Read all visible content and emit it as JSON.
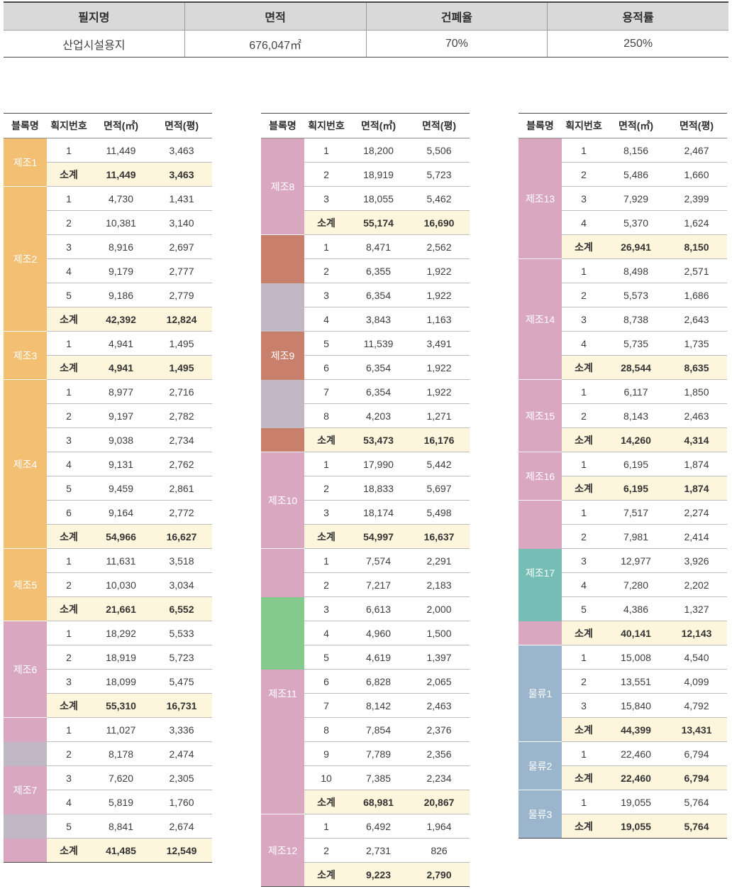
{
  "summary": {
    "headers": [
      "필지명",
      "면적",
      "건폐율",
      "용적률"
    ],
    "values": [
      "산업시설용지",
      "676,047㎡",
      "70%",
      "250%"
    ]
  },
  "table_header": {
    "block": "블록명",
    "parcel": "획지번호",
    "area_m2": "면적(㎡)",
    "area_py": "면적(평)"
  },
  "colors": {
    "orange": "#f2bf73",
    "pink": "#d9a8c0",
    "brown": "#c8806c",
    "gray": "#c0b8c4",
    "green": "#86c98d",
    "teal": "#76bdb5",
    "blue": "#9bb5cc",
    "subtotal_bg": "#fdf5dc"
  },
  "tables": [
    {
      "blocks": [
        {
          "name": "제조1",
          "rows": [
            [
              "1",
              "11,449",
              "3,463"
            ],
            [
              "소계",
              "11,449",
              "3,463"
            ]
          ],
          "stripes": [
            [
              "orange",
              2
            ]
          ]
        },
        {
          "name": "제조2",
          "rows": [
            [
              "1",
              "4,730",
              "1,431"
            ],
            [
              "2",
              "10,381",
              "3,140"
            ],
            [
              "3",
              "8,916",
              "2,697"
            ],
            [
              "4",
              "9,179",
              "2,777"
            ],
            [
              "5",
              "9,186",
              "2,779"
            ],
            [
              "소계",
              "42,392",
              "12,824"
            ]
          ],
          "stripes": [
            [
              "orange",
              6
            ]
          ]
        },
        {
          "name": "제조3",
          "rows": [
            [
              "1",
              "4,941",
              "1,495"
            ],
            [
              "소계",
              "4,941",
              "1,495"
            ]
          ],
          "stripes": [
            [
              "orange",
              2
            ]
          ]
        },
        {
          "name": "제조4",
          "rows": [
            [
              "1",
              "8,977",
              "2,716"
            ],
            [
              "2",
              "9,197",
              "2,782"
            ],
            [
              "3",
              "9,038",
              "2,734"
            ],
            [
              "4",
              "9,131",
              "2,762"
            ],
            [
              "5",
              "9,459",
              "2,861"
            ],
            [
              "6",
              "9,164",
              "2,772"
            ],
            [
              "소계",
              "54,966",
              "16,627"
            ]
          ],
          "stripes": [
            [
              "orange",
              7
            ]
          ]
        },
        {
          "name": "제조5",
          "rows": [
            [
              "1",
              "11,631",
              "3,518"
            ],
            [
              "2",
              "10,030",
              "3,034"
            ],
            [
              "소계",
              "21,661",
              "6,552"
            ]
          ],
          "stripes": [
            [
              "orange",
              3
            ]
          ]
        },
        {
          "name": "제조6",
          "rows": [
            [
              "1",
              "18,292",
              "5,533"
            ],
            [
              "2",
              "18,919",
              "5,723"
            ],
            [
              "3",
              "18,099",
              "5,475"
            ],
            [
              "소계",
              "55,310",
              "16,731"
            ]
          ],
          "stripes": [
            [
              "pink",
              4
            ]
          ]
        },
        {
          "name": "제조7",
          "rows": [
            [
              "1",
              "11,027",
              "3,336"
            ],
            [
              "2",
              "8,178",
              "2,474"
            ],
            [
              "3",
              "7,620",
              "2,305"
            ],
            [
              "4",
              "5,819",
              "1,760"
            ],
            [
              "5",
              "8,841",
              "2,674"
            ],
            [
              "소계",
              "41,485",
              "12,549"
            ]
          ],
          "stripes": [
            [
              "pink",
              1
            ],
            [
              "gray",
              1
            ],
            [
              "pink",
              2
            ],
            [
              "gray",
              1
            ],
            [
              "pink",
              1
            ]
          ],
          "label_offset": 2
        }
      ]
    },
    {
      "blocks": [
        {
          "name": "제조8",
          "rows": [
            [
              "1",
              "18,200",
              "5,506"
            ],
            [
              "2",
              "18,919",
              "5,723"
            ],
            [
              "3",
              "18,055",
              "5,462"
            ],
            [
              "소계",
              "55,174",
              "16,690"
            ]
          ],
          "stripes": [
            [
              "pink",
              4
            ]
          ]
        },
        {
          "name": "제조9",
          "rows": [
            [
              "1",
              "8,471",
              "2,562"
            ],
            [
              "2",
              "6,355",
              "1,922"
            ],
            [
              "3",
              "6,354",
              "1,922"
            ],
            [
              "4",
              "3,843",
              "1,163"
            ],
            [
              "5",
              "11,539",
              "3,491"
            ],
            [
              "6",
              "6,354",
              "1,922"
            ],
            [
              "7",
              "6,354",
              "1,922"
            ],
            [
              "8",
              "4,203",
              "1,271"
            ],
            [
              "소계",
              "53,473",
              "16,176"
            ]
          ],
          "stripes": [
            [
              "brown",
              2
            ],
            [
              "gray",
              2
            ],
            [
              "brown",
              2
            ],
            [
              "gray",
              2
            ],
            [
              "brown",
              1
            ]
          ],
          "label_offset": 4
        },
        {
          "name": "제조10",
          "rows": [
            [
              "1",
              "17,990",
              "5,442"
            ],
            [
              "2",
              "18,833",
              "5,697"
            ],
            [
              "3",
              "18,174",
              "5,498"
            ],
            [
              "소계",
              "54,997",
              "16,637"
            ]
          ],
          "stripes": [
            [
              "pink",
              4
            ]
          ]
        },
        {
          "name": "제조11",
          "rows": [
            [
              "1",
              "7,574",
              "2,291"
            ],
            [
              "2",
              "7,217",
              "2,183"
            ],
            [
              "3",
              "6,613",
              "2,000"
            ],
            [
              "4",
              "4,960",
              "1,500"
            ],
            [
              "5",
              "4,619",
              "1,397"
            ],
            [
              "6",
              "6,828",
              "2,065"
            ],
            [
              "7",
              "8,142",
              "2,463"
            ],
            [
              "8",
              "7,854",
              "2,376"
            ],
            [
              "9",
              "7,789",
              "2,356"
            ],
            [
              "10",
              "7,385",
              "2,234"
            ],
            [
              "소계",
              "68,981",
              "20,867"
            ]
          ],
          "stripes": [
            [
              "pink",
              2
            ],
            [
              "green",
              3
            ],
            [
              "pink",
              6
            ]
          ],
          "label_offset": 5
        },
        {
          "name": "제조12",
          "rows": [
            [
              "1",
              "6,492",
              "1,964"
            ],
            [
              "2",
              "2,731",
              "826"
            ],
            [
              "소계",
              "9,223",
              "2,790"
            ]
          ],
          "stripes": [
            [
              "pink",
              3
            ]
          ]
        }
      ]
    },
    {
      "blocks": [
        {
          "name": "제조13",
          "rows": [
            [
              "1",
              "8,156",
              "2,467"
            ],
            [
              "2",
              "5,486",
              "1,660"
            ],
            [
              "3",
              "7,929",
              "2,399"
            ],
            [
              "4",
              "5,370",
              "1,624"
            ],
            [
              "소계",
              "26,941",
              "8,150"
            ]
          ],
          "stripes": [
            [
              "pink",
              5
            ]
          ]
        },
        {
          "name": "제조14",
          "rows": [
            [
              "1",
              "8,498",
              "2,571"
            ],
            [
              "2",
              "5,573",
              "1,686"
            ],
            [
              "3",
              "8,738",
              "2,643"
            ],
            [
              "4",
              "5,735",
              "1,735"
            ],
            [
              "소계",
              "28,544",
              "8,635"
            ]
          ],
          "stripes": [
            [
              "pink",
              5
            ]
          ]
        },
        {
          "name": "제조15",
          "rows": [
            [
              "1",
              "6,117",
              "1,850"
            ],
            [
              "2",
              "8,143",
              "2,463"
            ],
            [
              "소계",
              "14,260",
              "4,314"
            ]
          ],
          "stripes": [
            [
              "pink",
              3
            ]
          ]
        },
        {
          "name": "제조16",
          "rows": [
            [
              "1",
              "6,195",
              "1,874"
            ],
            [
              "소계",
              "6,195",
              "1,874"
            ]
          ],
          "stripes": [
            [
              "pink",
              2
            ]
          ]
        },
        {
          "name": "제조17",
          "rows": [
            [
              "1",
              "7,517",
              "2,274"
            ],
            [
              "2",
              "7,981",
              "2,414"
            ],
            [
              "3",
              "12,977",
              "3,926"
            ],
            [
              "4",
              "7,280",
              "2,202"
            ],
            [
              "5",
              "4,386",
              "1,327"
            ],
            [
              "소계",
              "40,141",
              "12,143"
            ]
          ],
          "stripes": [
            [
              "pink",
              2
            ],
            [
              "teal",
              3
            ],
            [
              "pink",
              1
            ]
          ],
          "label_offset": 2
        },
        {
          "name": "물류1",
          "rows": [
            [
              "1",
              "15,008",
              "4,540"
            ],
            [
              "2",
              "13,551",
              "4,099"
            ],
            [
              "3",
              "15,840",
              "4,792"
            ],
            [
              "소계",
              "44,399",
              "13,431"
            ]
          ],
          "stripes": [
            [
              "blue",
              4
            ]
          ]
        },
        {
          "name": "물류2",
          "rows": [
            [
              "1",
              "22,460",
              "6,794"
            ],
            [
              "소계",
              "22,460",
              "6,794"
            ]
          ],
          "stripes": [
            [
              "blue",
              2
            ]
          ]
        },
        {
          "name": "물류3",
          "rows": [
            [
              "1",
              "19,055",
              "5,764"
            ],
            [
              "소계",
              "19,055",
              "5,764"
            ]
          ],
          "stripes": [
            [
              "blue",
              2
            ]
          ]
        }
      ]
    }
  ]
}
